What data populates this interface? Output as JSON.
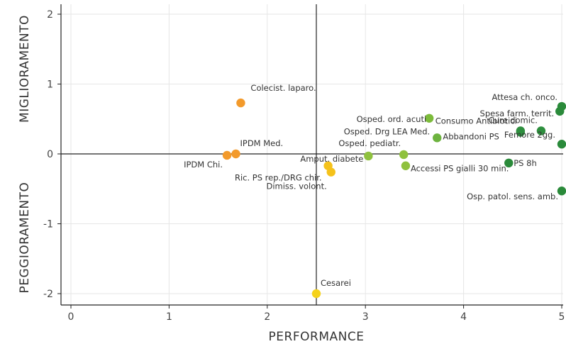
{
  "chart_data": {
    "type": "scatter",
    "xlabel": "PERFORMANCE",
    "ylabel_top": "MIGLIORAMENTO",
    "ylabel_bottom": "PEGGIORAMENTO",
    "xlim": [
      -0.1,
      5.0
    ],
    "ylim": [
      -2.15,
      2.15
    ],
    "x_ticks": [
      0,
      1,
      2,
      3,
      4,
      5
    ],
    "y_ticks": [
      -2,
      -1,
      0,
      1,
      2
    ],
    "x_tick_labels": [
      "0",
      "1",
      "2",
      "3",
      "4",
      "5"
    ],
    "y_tick_labels": [
      "-2",
      "-1",
      "0",
      "1",
      "2"
    ],
    "reference_lines": {
      "x": 2.5,
      "y": 0
    },
    "grid": true,
    "points": [
      {
        "label": "Colecist. laparo.",
        "x": 1.73,
        "y": 0.73,
        "color": "#f39a2b"
      },
      {
        "label": "IPDM Med.",
        "x": 1.68,
        "y": 0.0,
        "color": "#f39a2b"
      },
      {
        "label": "IPDM Chi.",
        "x": 1.59,
        "y": -0.02,
        "color": "#f39a2b"
      },
      {
        "label": "Ric. PS rep./DRG chir.",
        "x": 2.62,
        "y": -0.17,
        "color": "#f5c21b"
      },
      {
        "label": "Dimiss. volont.",
        "x": 2.65,
        "y": -0.26,
        "color": "#f5c21b"
      },
      {
        "label": "Cesarei",
        "x": 2.5,
        "y": -2.0,
        "color": "#f5d21b"
      },
      {
        "label": "Amput. diabete",
        "x": 3.03,
        "y": -0.03,
        "color": "#8fc13e"
      },
      {
        "label": "Osped. pediatr.",
        "x": 3.39,
        "y": -0.01,
        "color": "#8fc13e"
      },
      {
        "label": "Accessi PS gialli 30 min.",
        "x": 3.41,
        "y": -0.17,
        "color": "#8fc13e"
      },
      {
        "label": "Osped. ord. acuti",
        "x": 3.65,
        "y": 0.51,
        "color": "#7cbb3a"
      },
      {
        "label": "Osped. Drg LEA Med.",
        "x": 3.73,
        "y": 0.23,
        "color": "#6db33f"
      },
      {
        "label": "Consumo Antibiotici",
        "x": 4.58,
        "y": 0.33,
        "color": "#2e8f3e"
      },
      {
        "label": "Abbandoni PS",
        "x": 4.58,
        "y": 0.31,
        "color": "#2e8f3e"
      },
      {
        "label": "Cure domic.",
        "x": 4.79,
        "y": 0.33,
        "color": "#2e8f3e"
      },
      {
        "label": "PS 8h",
        "x": 4.46,
        "y": -0.13,
        "color": "#2a8a3a"
      },
      {
        "label": "Femore 2gg.",
        "x": 5.0,
        "y": 0.14,
        "color": "#2a8a3a"
      },
      {
        "label": "Attesa ch. onco.",
        "x": 5.0,
        "y": 0.68,
        "color": "#2a8a3a"
      },
      {
        "label": "Spesa farm. territ.",
        "x": 4.98,
        "y": 0.61,
        "color": "#2a8a3a"
      },
      {
        "label": "Osp. patol. sens. amb.",
        "x": 5.0,
        "y": -0.53,
        "color": "#2a8a3a"
      }
    ]
  }
}
